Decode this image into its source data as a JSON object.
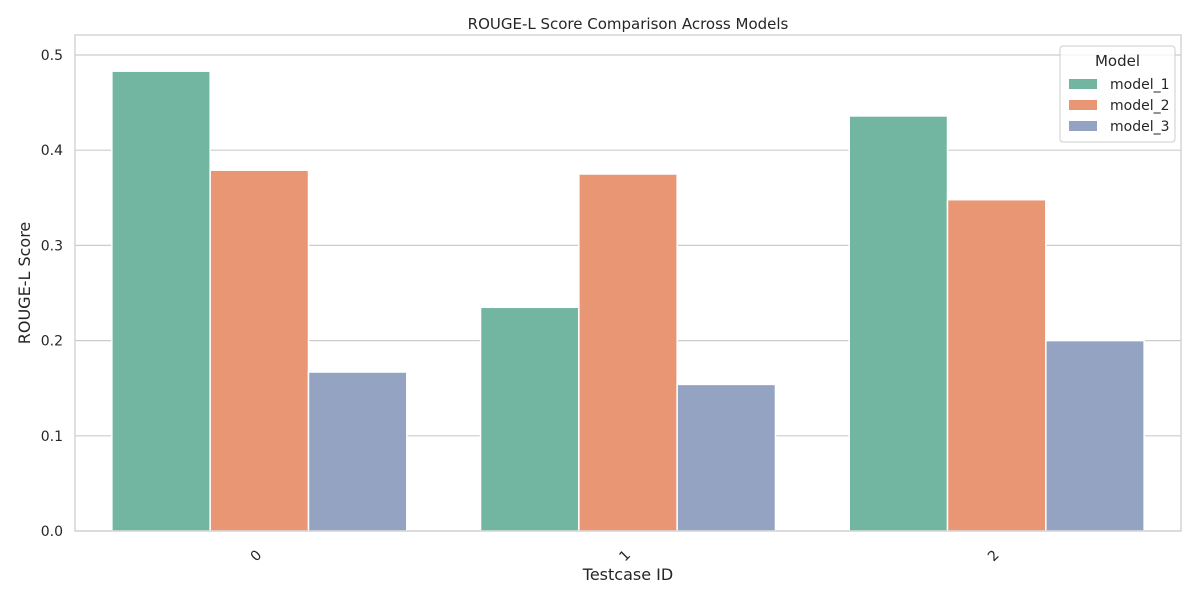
{
  "chart_data": {
    "type": "bar",
    "title": "ROUGE-L Score Comparison Across Models",
    "xlabel": "Testcase ID",
    "ylabel": "ROUGE-L Score",
    "categories": [
      "0",
      "1",
      "2"
    ],
    "ylim": [
      0,
      0.5
    ],
    "yticks": [
      "0.0",
      "0.1",
      "0.2",
      "0.3",
      "0.4",
      "0.5"
    ],
    "grid": true,
    "legend": {
      "title": "Model",
      "placement": "top-right"
    },
    "series": [
      {
        "name": "model_1",
        "color": "#72b6a1",
        "values": [
          0.483,
          0.235,
          0.436
        ]
      },
      {
        "name": "model_2",
        "color": "#e99675",
        "values": [
          0.379,
          0.375,
          0.348
        ]
      },
      {
        "name": "model_3",
        "color": "#95a3c3",
        "values": [
          0.167,
          0.154,
          0.2
        ]
      }
    ]
  }
}
